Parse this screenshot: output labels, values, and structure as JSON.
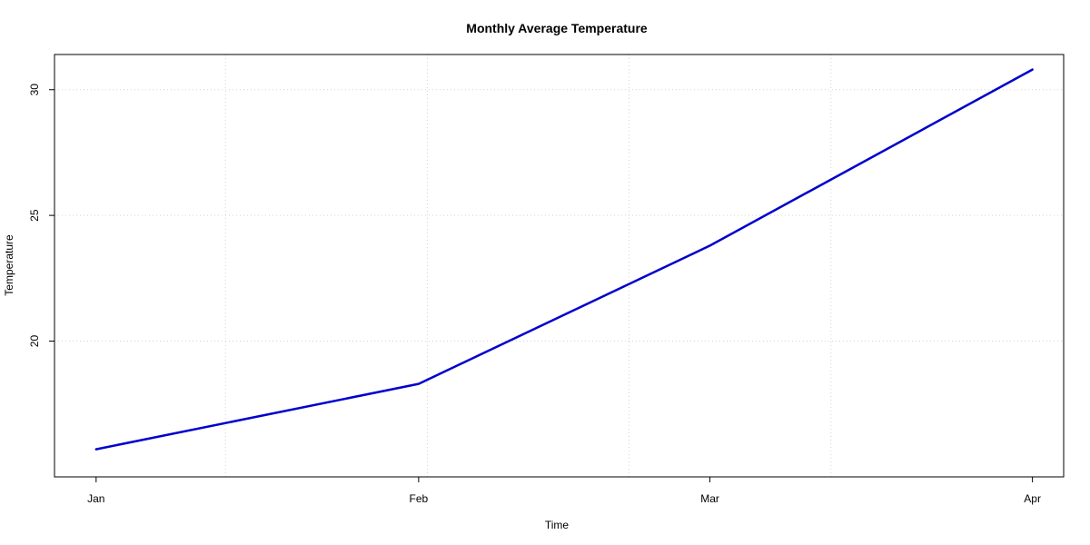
{
  "chart_data": {
    "type": "line",
    "title": "Monthly Average Temperature",
    "xlabel": "Time",
    "ylabel": "Temperature",
    "categories": [
      "Jan",
      "Feb",
      "Mar",
      "Apr"
    ],
    "x": [
      "2023-01-01",
      "2023-02-01",
      "2023-03-01",
      "2023-04-01"
    ],
    "xlim": [
      "2022-12-28",
      "2023-04-04"
    ],
    "ylim": [
      14.6,
      31.4
    ],
    "yticks": [
      20,
      25,
      30
    ],
    "grid": true,
    "series": [
      {
        "values": [
          15.7,
          18.3,
          23.8,
          30.8
        ],
        "color": "#0000CD"
      }
    ]
  }
}
